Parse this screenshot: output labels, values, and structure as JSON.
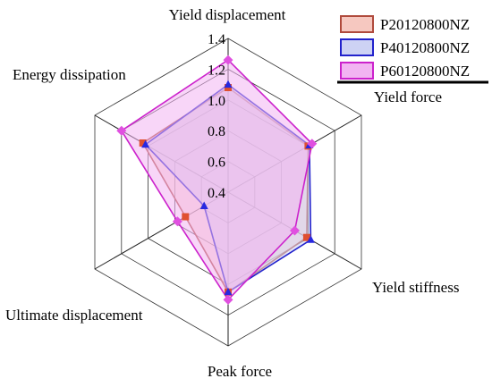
{
  "chart_data": {
    "type": "radar",
    "axes": [
      "Yield displacement",
      "Yield force",
      "Yield stiffness",
      "Peak force",
      "Ultimate displacement",
      "Energy dissipation"
    ],
    "ticks": [
      "0.4",
      "0.6",
      "0.8",
      "1.0",
      "1.2",
      "1.4"
    ],
    "tick_values": [
      0.4,
      0.6,
      0.8,
      1.0,
      1.2,
      1.4
    ],
    "range": [
      0.4,
      1.4
    ],
    "grid": "hexagonal",
    "legend_position": "top-right",
    "series": [
      {
        "name": "P20120800NZ",
        "values": [
          1.08,
          1.0,
          0.99,
          1.05,
          0.72,
          1.04
        ],
        "line_color": "#b04a3c",
        "fill_color": "#f6c8c0",
        "marker_color": "#e05030"
      },
      {
        "name": "P40120800NZ",
        "values": [
          1.1,
          1.01,
          1.02,
          1.05,
          0.58,
          1.02
        ],
        "line_color": "#2222cc",
        "fill_color": "#cdd2f4",
        "marker_color": "#2828e0"
      },
      {
        "name": "P60120800NZ",
        "values": [
          1.26,
          1.03,
          0.9,
          1.1,
          0.78,
          1.2
        ],
        "line_color": "#cc22cc",
        "fill_color": "#f2b4f2",
        "marker_color": "#e050e0"
      }
    ]
  }
}
